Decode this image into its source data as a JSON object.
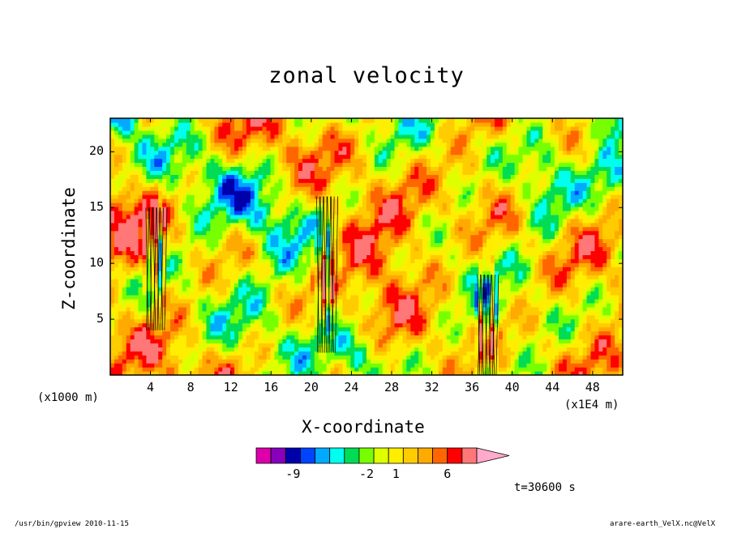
{
  "app": {
    "footer_left": "/usr/bin/gpview  2010-11-15",
    "footer_right": "arare-earth_VelX.nc@VelX"
  },
  "chart_data": {
    "type": "heatmap",
    "title": "zonal velocity",
    "xlabel": "X-coordinate",
    "ylabel": "Z-coordinate",
    "x_unit_label": "(x1000 m)",
    "x_scale_label": "(x1E4 m)",
    "time_label": "t=30600 s",
    "x_ticks": [
      4,
      8,
      12,
      16,
      20,
      24,
      28,
      32,
      36,
      40,
      44,
      48
    ],
    "y_ticks": [
      5,
      10,
      15,
      20
    ],
    "xlim": [
      0,
      51
    ],
    "ylim": [
      0,
      23
    ],
    "colorbar": {
      "levels": [
        "-9",
        "-2",
        "1",
        "6"
      ],
      "colors": [
        "#dd00aa",
        "#8800bb",
        "#0000aa",
        "#0044ff",
        "#00aaff",
        "#00ffee",
        "#00dd55",
        "#77ff00",
        "#ddff00",
        "#ffee00",
        "#ffcc00",
        "#ffaa00",
        "#ff6600",
        "#ff0000",
        "#ff7777",
        "#ffaacc"
      ]
    },
    "features": [
      {
        "x": 21.5,
        "z": 9,
        "note": "strong vertical contour cluster"
      },
      {
        "x": 37.5,
        "z": 5,
        "note": "strong vertical contour cluster"
      },
      {
        "x": 4.5,
        "z": 11,
        "note": "contour cluster"
      }
    ]
  }
}
